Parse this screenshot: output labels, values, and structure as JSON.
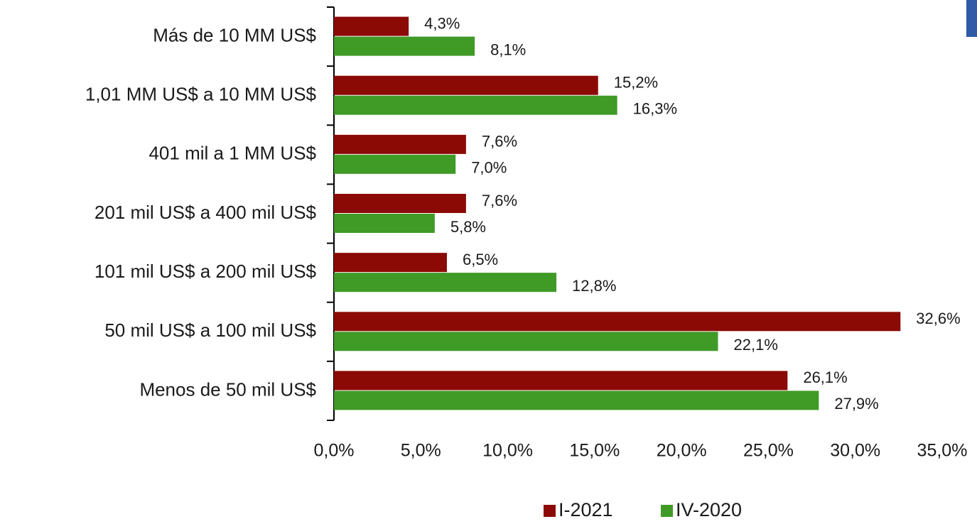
{
  "chart_data": {
    "type": "hbar",
    "categories": [
      "Más de 10 MM US$",
      "1,01 MM US$ a 10 MM US$",
      "401 mil a 1 MM US$",
      "201 mil US$ a 400 mil US$",
      "101 mil US$ a 200 mil US$",
      "50 mil US$ a 100 mil US$",
      "Menos de 50 mil US$"
    ],
    "series": [
      {
        "name": "I-2021",
        "color": "#8b0a05",
        "values": [
          4.3,
          15.2,
          7.6,
          7.6,
          6.5,
          32.6,
          26.1
        ],
        "value_labels": [
          "4,3%",
          "15,2%",
          "7,6%",
          "7,6%",
          "6,5%",
          "32,6%",
          "26,1%"
        ]
      },
      {
        "name": "IV-2020",
        "color": "#3f9a26",
        "values": [
          8.1,
          16.3,
          7.0,
          5.8,
          12.8,
          22.1,
          27.9
        ],
        "value_labels": [
          "8,1%",
          "16,3%",
          "7,0%",
          "5,8%",
          "12,8%",
          "22,1%",
          "27,9%"
        ]
      }
    ],
    "xlim": [
      0,
      35
    ],
    "xticks": [
      {
        "value": 0,
        "label": "0,0%"
      },
      {
        "value": 5,
        "label": "5,0%"
      },
      {
        "value": 10,
        "label": "10,0%"
      },
      {
        "value": 15,
        "label": "15,0%"
      },
      {
        "value": 20,
        "label": "20,0%"
      },
      {
        "value": 25,
        "label": "25,0%"
      },
      {
        "value": 30,
        "label": "30,0%"
      },
      {
        "value": 35,
        "label": "35,0%"
      }
    ],
    "legend": "bottom"
  }
}
